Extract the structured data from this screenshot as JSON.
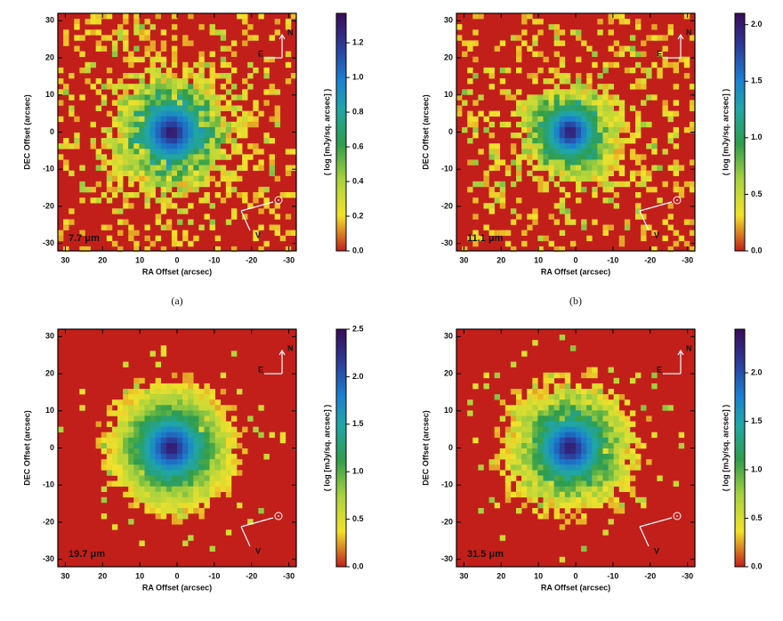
{
  "chart_data": [
    {
      "type": "heatmap",
      "label": "7.7 μm",
      "caption": "(a)",
      "xlabel": "RA Offset (arcsec)",
      "ylabel": "DEC Offset (arcsec)",
      "colorbar_label": "( log [mJy/sq. arcsec] )",
      "north_label": "N",
      "east_label": "E",
      "velocity_label": "V",
      "xlim": [
        32,
        -32
      ],
      "ylim": [
        -32,
        32
      ],
      "xticks": [
        30,
        20,
        10,
        0,
        -10,
        -20,
        -30
      ],
      "yticks": [
        -30,
        -20,
        -10,
        0,
        10,
        20,
        30
      ],
      "clim": [
        0,
        1.37
      ],
      "cticks": [
        {
          "value": 0,
          "label": "0.0"
        },
        {
          "value": 0.2,
          "label": "0.2"
        },
        {
          "value": 0.4,
          "label": "0.4"
        },
        {
          "value": 0.6,
          "label": "0.6"
        },
        {
          "value": 0.8,
          "label": "0.8"
        },
        {
          "value": 1,
          "label": "1.0"
        },
        {
          "value": 1.2,
          "label": "1.2"
        }
      ]
    },
    {
      "type": "heatmap",
      "label": "11.1 μm",
      "caption": "(b)",
      "xlabel": "RA Offset (arcsec)",
      "ylabel": "DEC Offset (arcsec)",
      "colorbar_label": "( log [mJy/sq. arcsec] )",
      "north_label": "N",
      "east_label": "E",
      "velocity_label": "V",
      "xlim": [
        32,
        -32
      ],
      "ylim": [
        -32,
        32
      ],
      "xticks": [
        30,
        20,
        10,
        0,
        -10,
        -20,
        -30
      ],
      "yticks": [
        -30,
        -20,
        -10,
        0,
        10,
        20,
        30
      ],
      "clim": [
        0,
        2.1
      ],
      "cticks": [
        {
          "value": 0,
          "label": "0.0"
        },
        {
          "value": 0.5,
          "label": "0.5"
        },
        {
          "value": 1,
          "label": "1.0"
        },
        {
          "value": 1.5,
          "label": "1.5"
        },
        {
          "value": 2,
          "label": "2.0"
        }
      ]
    },
    {
      "type": "heatmap",
      "label": "19.7 μm",
      "xlabel": "RA Offset (arcsec)",
      "ylabel": "DEC Offset (arcsec)",
      "colorbar_label": "( log [mJy/sq. arcsec] )",
      "north_label": "N",
      "east_label": "E",
      "velocity_label": "V",
      "xlim": [
        32,
        -32
      ],
      "ylim": [
        -32,
        32
      ],
      "xticks": [
        30,
        20,
        10,
        0,
        -10,
        -20,
        -30
      ],
      "yticks": [
        -30,
        -20,
        -10,
        0,
        10,
        20,
        30
      ],
      "clim": [
        0,
        2.5
      ],
      "cticks": [
        {
          "value": 0,
          "label": "0.0"
        },
        {
          "value": 0.5,
          "label": "0.5"
        },
        {
          "value": 1,
          "label": "1.0"
        },
        {
          "value": 1.5,
          "label": "1.5"
        },
        {
          "value": 2,
          "label": "2.0"
        },
        {
          "value": 2.5,
          "label": "2.5"
        }
      ]
    },
    {
      "type": "heatmap",
      "label": "31.5 μm",
      "xlabel": "RA Offset (arcsec)",
      "ylabel": "DEC Offset (arcsec)",
      "colorbar_label": "( log [mJy/sq. arcsec] )",
      "north_label": "N",
      "east_label": "E",
      "velocity_label": "V",
      "xlim": [
        32,
        -32
      ],
      "ylim": [
        -32,
        32
      ],
      "xticks": [
        30,
        20,
        10,
        0,
        -10,
        -20,
        -30
      ],
      "yticks": [
        -30,
        -20,
        -10,
        0,
        10,
        20,
        30
      ],
      "clim": [
        0,
        2.45
      ],
      "cticks": [
        {
          "value": 0,
          "label": "0.0"
        },
        {
          "value": 0.5,
          "label": "0.5"
        },
        {
          "value": 1,
          "label": "1.0"
        },
        {
          "value": 1.5,
          "label": "1.5"
        },
        {
          "value": 2,
          "label": "2.0"
        }
      ]
    }
  ]
}
